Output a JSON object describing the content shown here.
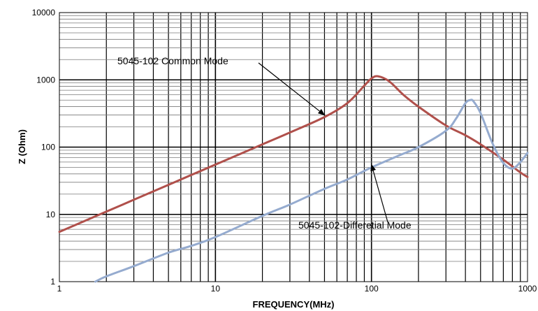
{
  "chart_data": {
    "type": "line",
    "xscale": "log",
    "yscale": "log",
    "xlim": [
      1,
      1000
    ],
    "ylim": [
      1,
      10000
    ],
    "xlabel": "FREQUENCY(MHz)",
    "ylabel": "Z (Ohm)",
    "xticks": [
      "1",
      "10",
      "100",
      "1000"
    ],
    "yticks": [
      "1",
      "10",
      "100",
      "1000",
      "10000"
    ],
    "grid": true,
    "series": [
      {
        "name": "5045-102 Common Mode",
        "color": "#b0504b",
        "x": [
          1,
          2,
          3,
          5,
          7,
          10,
          20,
          30,
          50,
          70,
          90,
          100,
          110,
          130,
          160,
          200,
          300,
          400,
          500,
          700,
          900,
          1000
        ],
        "y": [
          5.5,
          11,
          16.5,
          27.5,
          38.5,
          55,
          110,
          165,
          280,
          450,
          820,
          1050,
          1130,
          950,
          600,
          400,
          210,
          150,
          110,
          65,
          42,
          36
        ]
      },
      {
        "name": "5045-102-Differetial Mode",
        "color": "#95abcf",
        "x": [
          1.7,
          2,
          3,
          5,
          7,
          10,
          20,
          30,
          50,
          70,
          100,
          150,
          200,
          300,
          350,
          400,
          430,
          450,
          500,
          600,
          700,
          800,
          900,
          1000
        ],
        "y": [
          1,
          1.2,
          1.7,
          2.7,
          3.4,
          4.6,
          9.5,
          14,
          24,
          33,
          50,
          75,
          100,
          175,
          270,
          450,
          500,
          480,
          320,
          110,
          58,
          48,
          60,
          82
        ]
      }
    ],
    "annotations": [
      {
        "text": "5045-102 Common Mode",
        "target": [
          50,
          300
        ]
      },
      {
        "text": "5045-102-Differetial Mode",
        "target": [
          100,
          55
        ]
      }
    ]
  }
}
